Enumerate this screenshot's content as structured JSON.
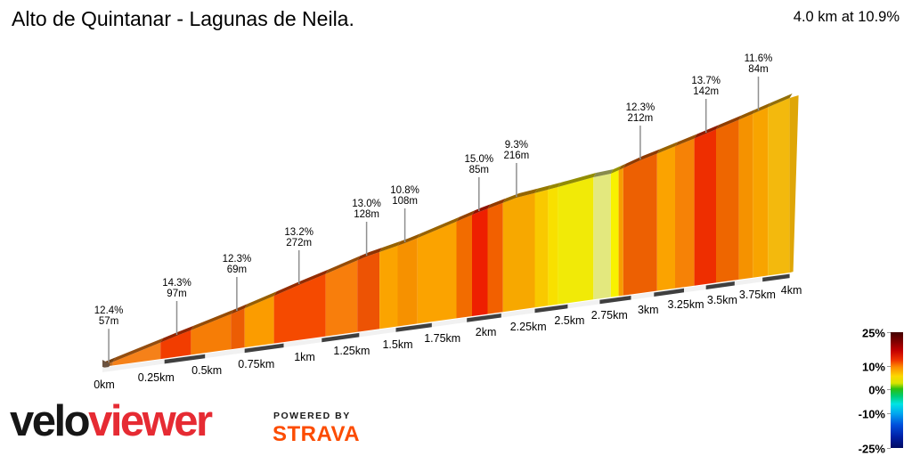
{
  "header": {
    "title": "Alto de Quintanar - Lagunas de Neila.",
    "summary": "4.0 km at 10.9%"
  },
  "footer": {
    "brand_black": "velo",
    "brand_red": "viewer",
    "powered_by": "POWERED BY",
    "strava": "STRAVA"
  },
  "chart_data": {
    "type": "area",
    "title": "Alto de Quintanar - Lagunas de Neila.",
    "subtitle": "4.0 km at 10.9%",
    "total_distance_km": 4.0,
    "avg_gradient_pct": 10.9,
    "x_axis": {
      "unit": "km",
      "range_km": [
        0,
        4
      ],
      "tick_interval_km": 0.25,
      "ticks": [
        "0km",
        "0.25km",
        "0.5km",
        "0.75km",
        "1km",
        "1.25km",
        "1.5km",
        "1.75km",
        "2km",
        "2.25km",
        "2.5km",
        "2.75km",
        "3km",
        "3.25km",
        "3.5km",
        "3.75km",
        "4km"
      ]
    },
    "annotations": [
      {
        "gradient": "12.4%",
        "length": "57m",
        "km": 0.03
      },
      {
        "gradient": "14.3%",
        "length": "97m",
        "km": 0.36
      },
      {
        "gradient": "12.3%",
        "length": "69m",
        "km": 0.66
      },
      {
        "gradient": "13.2%",
        "length": "272m",
        "km": 0.98
      },
      {
        "gradient": "13.0%",
        "length": "128m",
        "km": 1.34
      },
      {
        "gradient": "10.8%",
        "length": "108m",
        "km": 1.55
      },
      {
        "gradient": "15.0%",
        "length": "85m",
        "km": 1.97
      },
      {
        "gradient": "9.3%",
        "length": "216m",
        "km": 2.19
      },
      {
        "gradient": "12.3%",
        "length": "212m",
        "km": 2.96
      },
      {
        "gradient": "13.7%",
        "length": "142m",
        "km": 3.4
      },
      {
        "gradient": "11.6%",
        "length": "84m",
        "km": 3.77
      }
    ],
    "segments": [
      {
        "from_km": 0.0,
        "to_km": 0.05,
        "color": "#c96f1e"
      },
      {
        "from_km": 0.05,
        "to_km": 0.28,
        "color": "#f58119"
      },
      {
        "from_km": 0.28,
        "to_km": 0.43,
        "color": "#f23d00"
      },
      {
        "from_km": 0.43,
        "to_km": 0.63,
        "color": "#f67d06"
      },
      {
        "from_km": 0.63,
        "to_km": 0.7,
        "color": "#ec5d04"
      },
      {
        "from_km": 0.7,
        "to_km": 0.85,
        "color": "#fb9c00"
      },
      {
        "from_km": 0.85,
        "to_km": 1.12,
        "color": "#f54a00"
      },
      {
        "from_km": 1.12,
        "to_km": 1.29,
        "color": "#f87e0c"
      },
      {
        "from_km": 1.29,
        "to_km": 1.41,
        "color": "#ed5304"
      },
      {
        "from_km": 1.41,
        "to_km": 1.51,
        "color": "#fba400"
      },
      {
        "from_km": 1.51,
        "to_km": 1.62,
        "color": "#f69100"
      },
      {
        "from_km": 1.62,
        "to_km": 1.84,
        "color": "#fba300"
      },
      {
        "from_km": 1.84,
        "to_km": 1.93,
        "color": "#f26c00"
      },
      {
        "from_km": 1.93,
        "to_km": 2.02,
        "color": "#ee1f00"
      },
      {
        "from_km": 2.02,
        "to_km": 2.11,
        "color": "#f26000"
      },
      {
        "from_km": 2.11,
        "to_km": 2.3,
        "color": "#f7a800"
      },
      {
        "from_km": 2.3,
        "to_km": 2.38,
        "color": "#f9c900"
      },
      {
        "from_km": 2.38,
        "to_km": 2.44,
        "color": "#f8e000"
      },
      {
        "from_km": 2.44,
        "to_km": 2.66,
        "color": "#f1ea07"
      },
      {
        "from_km": 2.66,
        "to_km": 2.77,
        "color": "#e3e87e"
      },
      {
        "from_km": 2.77,
        "to_km": 2.82,
        "color": "#f8f200"
      },
      {
        "from_km": 2.82,
        "to_km": 2.85,
        "color": "#f79c00"
      },
      {
        "from_km": 2.85,
        "to_km": 3.07,
        "color": "#ed6002"
      },
      {
        "from_km": 3.07,
        "to_km": 3.19,
        "color": "#fba300"
      },
      {
        "from_km": 3.19,
        "to_km": 3.32,
        "color": "#f68206"
      },
      {
        "from_km": 3.32,
        "to_km": 3.47,
        "color": "#ee2e00"
      },
      {
        "from_km": 3.47,
        "to_km": 3.63,
        "color": "#ee6600"
      },
      {
        "from_km": 3.63,
        "to_km": 3.73,
        "color": "#f59200"
      },
      {
        "from_km": 3.73,
        "to_km": 3.84,
        "color": "#f8a400"
      },
      {
        "from_km": 3.84,
        "to_km": 4.0,
        "color": "#f3b90d"
      }
    ],
    "profile_points": [
      [
        0,
        411
      ],
      [
        0.36,
        377
      ],
      [
        0.66,
        350
      ],
      [
        0.98,
        320
      ],
      [
        1.34,
        288
      ],
      [
        1.55,
        273
      ],
      [
        1.97,
        238
      ],
      [
        2.19,
        222
      ],
      [
        2.44,
        210
      ],
      [
        2.66,
        199
      ],
      [
        2.77,
        195
      ],
      [
        2.96,
        180
      ],
      [
        3.4,
        150
      ],
      [
        3.77,
        125
      ],
      [
        4.0,
        110
      ]
    ],
    "axis_dashes": {
      "light": "#f1f1f1",
      "dark": "#3f3f3f",
      "dark_ranges_km": [
        [
          0.3,
          0.5
        ],
        [
          0.7,
          0.9
        ],
        [
          1.1,
          1.3
        ],
        [
          1.5,
          1.7
        ],
        [
          1.9,
          2.1
        ],
        [
          2.3,
          2.5
        ],
        [
          2.7,
          2.9
        ],
        [
          3.05,
          3.25
        ],
        [
          3.4,
          3.6
        ],
        [
          3.8,
          4.0
        ]
      ]
    },
    "legend": {
      "labels": [
        {
          "text": "25%",
          "pos": 0.0
        },
        {
          "text": "10%",
          "pos": 0.29
        },
        {
          "text": "0%",
          "pos": 0.49
        },
        {
          "text": "-10%",
          "pos": 0.7
        },
        {
          "text": "-25%",
          "pos": 1.0
        }
      ],
      "gradient": [
        [
          0,
          "#420000"
        ],
        [
          0.08,
          "#7e0000"
        ],
        [
          0.16,
          "#c40000"
        ],
        [
          0.24,
          "#ef3300"
        ],
        [
          0.3,
          "#fc8a00"
        ],
        [
          0.38,
          "#fcd800"
        ],
        [
          0.44,
          "#d8e400"
        ],
        [
          0.49,
          "#2cc010"
        ],
        [
          0.55,
          "#00cc70"
        ],
        [
          0.62,
          "#00e4e4"
        ],
        [
          0.7,
          "#00a8f0"
        ],
        [
          0.8,
          "#0050dc"
        ],
        [
          0.9,
          "#0020a8"
        ],
        [
          1.0,
          "#000a62"
        ]
      ]
    }
  }
}
